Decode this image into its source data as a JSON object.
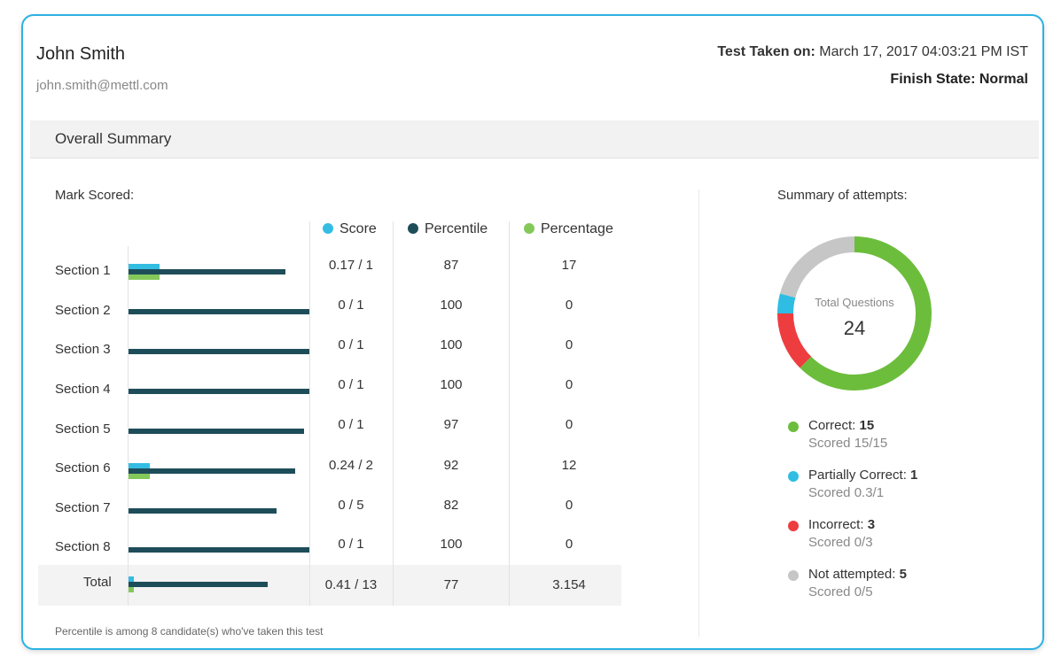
{
  "candidate": {
    "name": "John Smith",
    "email": "john.smith@mettl.com"
  },
  "test_info": {
    "taken_label": "Test Taken on:",
    "taken_value": " March 17, 2017 04:03:21 PM IST",
    "finish_label": "Finish State: ",
    "finish_value": "Normal"
  },
  "summary": {
    "title": "Overall Summary",
    "mark_label": "Mark Scored:"
  },
  "legend": [
    {
      "label": "Score",
      "color": "#33bde3"
    },
    {
      "label": "Percentile",
      "color": "#1e4d5a"
    },
    {
      "label": "Percentage",
      "color": "#84c85a"
    }
  ],
  "sections": [
    {
      "name": "Section 1",
      "score": "0.17 / 1",
      "percentile": "87",
      "percentage": "17",
      "score_frac": 0.17,
      "percentile_val": 87,
      "percentage_val": 17
    },
    {
      "name": "Section 2",
      "score": "0 / 1",
      "percentile": "100",
      "percentage": "0",
      "score_frac": 0,
      "percentile_val": 100,
      "percentage_val": 0
    },
    {
      "name": "Section 3",
      "score": "0 / 1",
      "percentile": "100",
      "percentage": "0",
      "score_frac": 0,
      "percentile_val": 100,
      "percentage_val": 0
    },
    {
      "name": "Section 4",
      "score": "0 / 1",
      "percentile": "100",
      "percentage": "0",
      "score_frac": 0,
      "percentile_val": 100,
      "percentage_val": 0
    },
    {
      "name": "Section 5",
      "score": "0 / 1",
      "percentile": "97",
      "percentage": "0",
      "score_frac": 0,
      "percentile_val": 97,
      "percentage_val": 0
    },
    {
      "name": "Section 6",
      "score": "0.24 / 2",
      "percentile": "92",
      "percentage": "12",
      "score_frac": 0.12,
      "percentile_val": 92,
      "percentage_val": 12
    },
    {
      "name": "Section 7",
      "score": "0 / 5",
      "percentile": "82",
      "percentage": "0",
      "score_frac": 0,
      "percentile_val": 82,
      "percentage_val": 0
    },
    {
      "name": "Section 8",
      "score": "0 / 1",
      "percentile": "100",
      "percentage": "0",
      "score_frac": 0,
      "percentile_val": 100,
      "percentage_val": 0
    }
  ],
  "total": {
    "name": "Total",
    "score": "0.41 / 13",
    "percentile": "77",
    "percentage": "3.154",
    "score_frac": 0.03154,
    "percentile_val": 77,
    "percentage_val": 3.154
  },
  "footnote": "Percentile is among 8 candidate(s) who've taken this test",
  "attempts": {
    "title": "Summary of attempts:",
    "total_label": "Total Questions",
    "total_value": "24",
    "items": [
      {
        "label": "Correct: ",
        "count": "15",
        "scored": "Scored 15/15",
        "color": "#6cbd3c",
        "value": 15
      },
      {
        "label": "Partially Correct: ",
        "count": "1",
        "scored": "Scored 0.3/1",
        "color": "#2fbde3",
        "value": 1
      },
      {
        "label": "Incorrect: ",
        "count": "3",
        "scored": "Scored 0/3",
        "color": "#ee3d3f",
        "value": 3
      },
      {
        "label": "Not attempted: ",
        "count": "5",
        "scored": "Scored 0/5",
        "color": "#c6c6c6",
        "value": 5
      }
    ]
  }
}
